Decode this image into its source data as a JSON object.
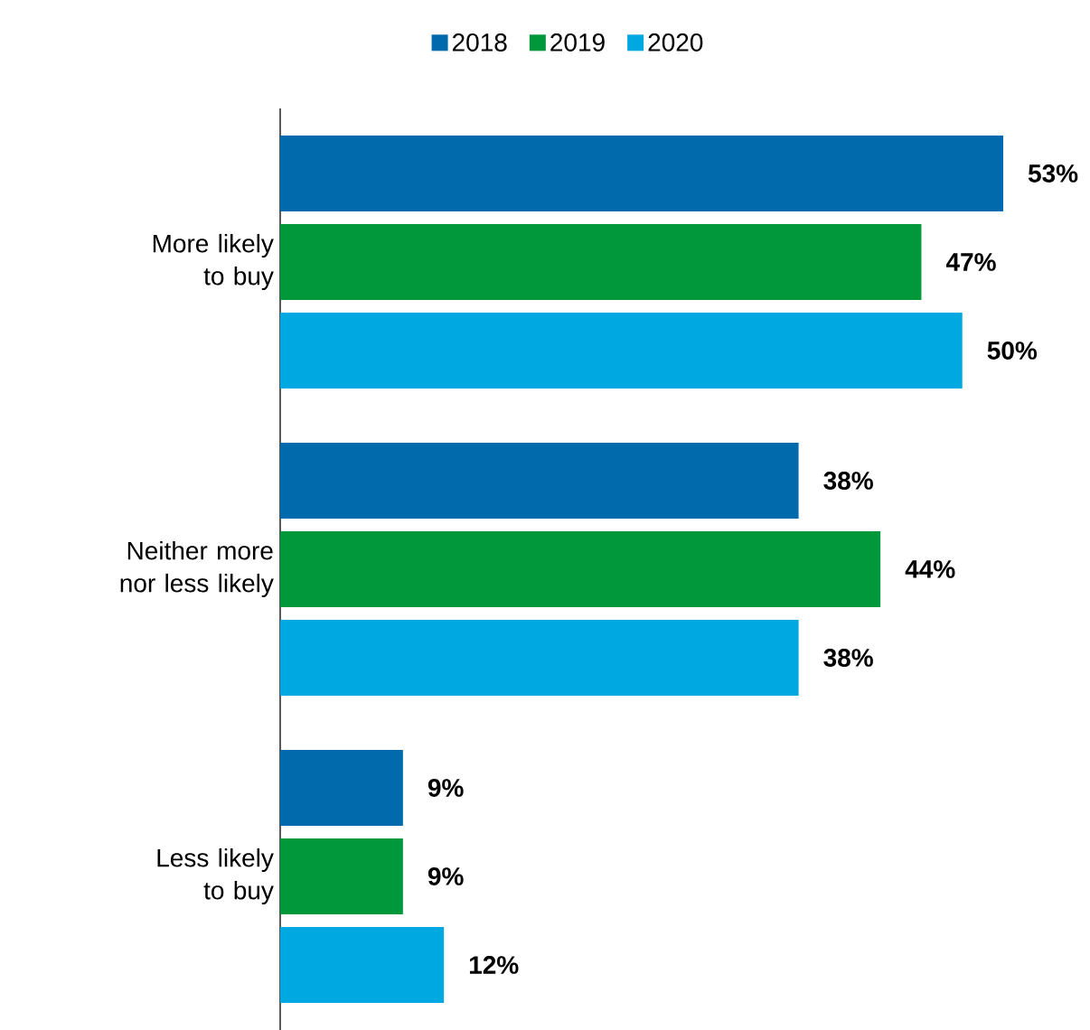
{
  "chart_data": {
    "type": "bar",
    "orientation": "horizontal",
    "categories": [
      "More likely to buy",
      "Neither more nor less likely",
      "Less likely to buy"
    ],
    "series": [
      {
        "name": "2018",
        "color": "#006aad",
        "values": [
          53,
          38,
          9
        ],
        "value_labels": [
          "53%",
          "38%",
          "9%"
        ]
      },
      {
        "name": "2019",
        "color": "#00983a",
        "values": [
          47,
          44,
          9
        ],
        "value_labels": [
          "47%",
          "44%",
          "9%"
        ]
      },
      {
        "name": "2020",
        "color": "#00a8e1",
        "values": [
          50,
          38,
          12
        ],
        "value_labels": [
          "50%",
          "38%",
          "12%"
        ]
      }
    ],
    "legend": "top",
    "tick_labels": "y"
  }
}
